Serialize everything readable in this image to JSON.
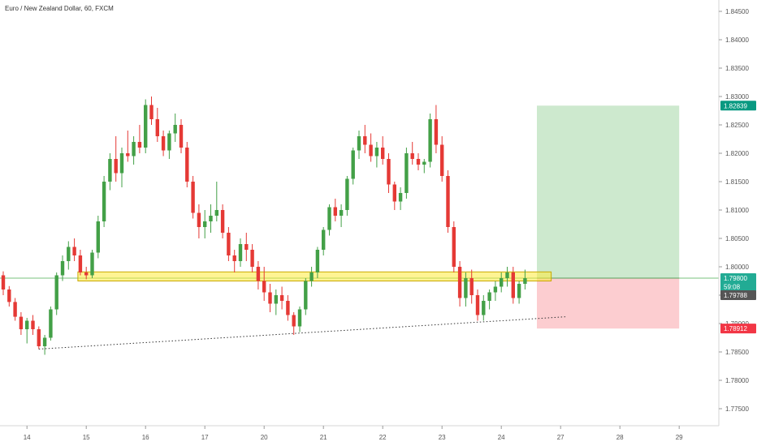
{
  "title": "Euro / New Zealand Dollar, 60, FXCM",
  "chart_data": {
    "type": "candlestick",
    "ylim": [
      1.772,
      1.847
    ],
    "x_tick_labels": [
      {
        "label": "14",
        "slot": 4
      },
      {
        "label": "15",
        "slot": 14
      },
      {
        "label": "16",
        "slot": 24
      },
      {
        "label": "17",
        "slot": 34
      },
      {
        "label": "20",
        "slot": 44
      },
      {
        "label": "21",
        "slot": 54
      },
      {
        "label": "22",
        "slot": 64
      },
      {
        "label": "23",
        "slot": 74
      },
      {
        "label": "24",
        "slot": 84
      },
      {
        "label": "27",
        "slot": 94
      },
      {
        "label": "28",
        "slot": 104
      },
      {
        "label": "29",
        "slot": 114
      }
    ],
    "y_tick_labels": [
      "1.84500",
      "1.84000",
      "1.83500",
      "1.83000",
      "1.82500",
      "1.82000",
      "1.81500",
      "1.81000",
      "1.80500",
      "1.80000",
      "1.79500",
      "1.79000",
      "1.78500",
      "1.78000",
      "1.77500"
    ],
    "y_ticks": [
      1.845,
      1.84,
      1.835,
      1.83,
      1.825,
      1.82,
      1.815,
      1.81,
      1.805,
      1.8,
      1.795,
      1.79,
      1.785,
      1.78,
      1.775
    ],
    "price_tags": [
      {
        "label": "1.82839",
        "value": 1.82839,
        "color": "#089981"
      },
      {
        "label": "1.79800",
        "value": 1.798,
        "color": "#22ab94"
      },
      {
        "label": "59:08",
        "value": 1.7965,
        "color": "#22ab94"
      },
      {
        "label": "1.79788",
        "value": 1.795,
        "color": "#555555"
      },
      {
        "label": "1.78912",
        "value": 1.78912,
        "color": "#f23645"
      }
    ],
    "candles": [
      [
        1.7985,
        1.7992,
        1.795,
        1.796
      ],
      [
        1.796,
        1.7966,
        1.793,
        1.7938
      ],
      [
        1.7938,
        1.7945,
        1.7905,
        1.7912
      ],
      [
        1.7912,
        1.792,
        1.788,
        1.789
      ],
      [
        1.789,
        1.791,
        1.7865,
        1.7905
      ],
      [
        1.7905,
        1.7915,
        1.788,
        1.789
      ],
      [
        1.789,
        1.7895,
        1.7855,
        1.786
      ],
      [
        1.786,
        1.788,
        1.7845,
        1.7875
      ],
      [
        1.7875,
        1.793,
        1.787,
        1.7925
      ],
      [
        1.7925,
        1.799,
        1.7915,
        1.7985
      ],
      [
        1.7985,
        1.802,
        1.7975,
        1.801
      ],
      [
        1.801,
        1.8045,
        1.7995,
        1.8035
      ],
      [
        1.8035,
        1.805,
        1.801,
        1.802
      ],
      [
        1.802,
        1.803,
        1.7985,
        1.799
      ],
      [
        1.799,
        1.8,
        1.7978,
        1.7985
      ],
      [
        1.7985,
        1.803,
        1.798,
        1.8025
      ],
      [
        1.8025,
        1.809,
        1.8015,
        1.808
      ],
      [
        1.808,
        1.816,
        1.807,
        1.815
      ],
      [
        1.815,
        1.82,
        1.8135,
        1.819
      ],
      [
        1.819,
        1.823,
        1.815,
        1.8165
      ],
      [
        1.8165,
        1.821,
        1.814,
        1.82
      ],
      [
        1.82,
        1.824,
        1.8185,
        1.8195
      ],
      [
        1.8195,
        1.823,
        1.818,
        1.822
      ],
      [
        1.822,
        1.825,
        1.82,
        1.821
      ],
      [
        1.821,
        1.8295,
        1.82,
        1.8285
      ],
      [
        1.8285,
        1.83,
        1.825,
        1.826
      ],
      [
        1.826,
        1.828,
        1.822,
        1.823
      ],
      [
        1.823,
        1.824,
        1.8195,
        1.8205
      ],
      [
        1.8205,
        1.824,
        1.819,
        1.8235
      ],
      [
        1.8235,
        1.827,
        1.822,
        1.825
      ],
      [
        1.825,
        1.826,
        1.82,
        1.821
      ],
      [
        1.821,
        1.822,
        1.814,
        1.815
      ],
      [
        1.815,
        1.816,
        1.8085,
        1.8095
      ],
      [
        1.8095,
        1.811,
        1.805,
        1.807
      ],
      [
        1.807,
        1.81,
        1.805,
        1.808
      ],
      [
        1.808,
        1.811,
        1.806,
        1.809
      ],
      [
        1.809,
        1.815,
        1.808,
        1.81
      ],
      [
        1.81,
        1.811,
        1.805,
        1.806
      ],
      [
        1.806,
        1.807,
        1.801,
        1.802
      ],
      [
        1.802,
        1.803,
        1.799,
        1.801
      ],
      [
        1.801,
        1.805,
        1.8,
        1.804
      ],
      [
        1.804,
        1.806,
        1.801,
        1.803
      ],
      [
        1.803,
        1.804,
        1.799,
        1.8
      ],
      [
        1.8,
        1.801,
        1.796,
        1.7975
      ],
      [
        1.7975,
        1.8,
        1.794,
        1.7955
      ],
      [
        1.7955,
        1.797,
        1.792,
        1.7935
      ],
      [
        1.7935,
        1.796,
        1.7915,
        1.795
      ],
      [
        1.795,
        1.7965,
        1.7925,
        1.794
      ],
      [
        1.794,
        1.795,
        1.7905,
        1.7915
      ],
      [
        1.7915,
        1.792,
        1.788,
        1.7895
      ],
      [
        1.7895,
        1.793,
        1.7885,
        1.7925
      ],
      [
        1.7925,
        1.798,
        1.7915,
        1.7975
      ],
      [
        1.7975,
        1.8,
        1.7965,
        1.799
      ],
      [
        1.799,
        1.8035,
        1.798,
        1.803
      ],
      [
        1.803,
        1.807,
        1.802,
        1.8065
      ],
      [
        1.8065,
        1.811,
        1.8055,
        1.8105
      ],
      [
        1.8105,
        1.812,
        1.808,
        1.809
      ],
      [
        1.809,
        1.811,
        1.807,
        1.81
      ],
      [
        1.81,
        1.816,
        1.809,
        1.8155
      ],
      [
        1.8155,
        1.821,
        1.8145,
        1.8205
      ],
      [
        1.8205,
        1.824,
        1.819,
        1.823
      ],
      [
        1.823,
        1.825,
        1.82,
        1.8215
      ],
      [
        1.8215,
        1.8235,
        1.8185,
        1.8195
      ],
      [
        1.8195,
        1.822,
        1.8175,
        1.821
      ],
      [
        1.821,
        1.823,
        1.818,
        1.819
      ],
      [
        1.819,
        1.82,
        1.813,
        1.8145
      ],
      [
        1.8145,
        1.815,
        1.81,
        1.8115
      ],
      [
        1.8115,
        1.814,
        1.81,
        1.813
      ],
      [
        1.813,
        1.821,
        1.812,
        1.82
      ],
      [
        1.82,
        1.822,
        1.818,
        1.819
      ],
      [
        1.819,
        1.82,
        1.817,
        1.818
      ],
      [
        1.818,
        1.819,
        1.8165,
        1.8185
      ],
      [
        1.8185,
        1.827,
        1.8175,
        1.826
      ],
      [
        1.826,
        1.8285,
        1.82,
        1.8215
      ],
      [
        1.8215,
        1.823,
        1.815,
        1.816
      ],
      [
        1.816,
        1.817,
        1.806,
        1.807
      ],
      [
        1.807,
        1.808,
        1.799,
        1.8
      ],
      [
        1.8,
        1.801,
        1.793,
        1.7945
      ],
      [
        1.7945,
        1.799,
        1.793,
        1.798
      ],
      [
        1.798,
        1.7995,
        1.7935,
        1.795
      ],
      [
        1.795,
        1.796,
        1.7905,
        1.7915
      ],
      [
        1.7915,
        1.795,
        1.7905,
        1.794
      ],
      [
        1.794,
        1.796,
        1.7925,
        1.7955
      ],
      [
        1.7955,
        1.7975,
        1.794,
        1.7965
      ],
      [
        1.7965,
        1.799,
        1.7955,
        1.798
      ],
      [
        1.798,
        1.8,
        1.7965,
        1.799
      ],
      [
        1.799,
        1.8,
        1.7935,
        1.7945
      ],
      [
        1.7945,
        1.7975,
        1.7935,
        1.797
      ],
      [
        1.797,
        1.7995,
        1.796,
        1.798
      ]
    ],
    "resistance_zone": {
      "from_slot": 13,
      "to_slot": 92,
      "low": 1.7975,
      "high": 1.7991,
      "color": "#ffeb3b"
    },
    "trendline": {
      "from_slot": 6,
      "from_value": 1.7855,
      "to_slot": 95,
      "to_value": 1.7912
    },
    "long_position": {
      "from_slot": 90,
      "to_slot": 114,
      "entry": 1.798,
      "target": 1.82839,
      "stop": 1.78912
    },
    "horizontal_line": {
      "value": 1.798,
      "color": "#4caf50"
    }
  }
}
